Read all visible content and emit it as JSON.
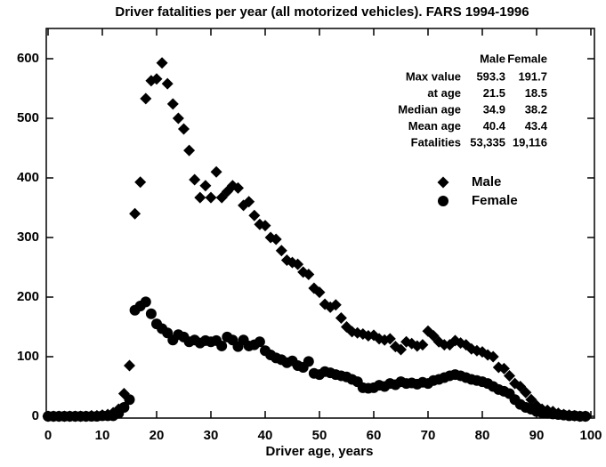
{
  "chart_data": {
    "type": "scatter",
    "title": "Driver fatalities per year (all motorized vehicles). FARS 1994-1996",
    "x_label": "Driver age, years",
    "x": [
      0,
      1,
      2,
      3,
      4,
      5,
      6,
      7,
      8,
      9,
      10,
      11,
      12,
      13,
      14,
      15,
      16,
      17,
      18,
      19,
      20,
      21,
      22,
      23,
      24,
      25,
      26,
      27,
      28,
      29,
      30,
      31,
      32,
      33,
      34,
      35,
      36,
      37,
      38,
      39,
      40,
      41,
      42,
      43,
      44,
      45,
      46,
      47,
      48,
      49,
      50,
      51,
      52,
      53,
      54,
      55,
      56,
      57,
      58,
      59,
      60,
      61,
      62,
      63,
      64,
      65,
      66,
      67,
      68,
      69,
      70,
      71,
      72,
      73,
      74,
      75,
      76,
      77,
      78,
      79,
      80,
      81,
      82,
      83,
      84,
      85,
      86,
      87,
      88,
      89,
      90,
      91,
      92,
      93,
      94,
      95,
      96,
      97,
      98,
      99
    ],
    "series": [
      {
        "name": "Male",
        "color": "#000000",
        "marker": "diamond",
        "values": [
          0,
          0,
          0,
          0,
          0,
          0,
          0,
          0,
          1,
          1,
          2,
          3,
          6,
          12,
          38,
          85,
          340,
          393,
          533,
          563,
          566,
          593,
          558,
          524,
          500,
          482,
          446,
          397,
          367,
          387,
          367,
          410,
          367,
          377,
          387,
          383,
          354,
          360,
          337,
          322,
          320,
          300,
          297,
          278,
          262,
          258,
          255,
          242,
          238,
          215,
          208,
          188,
          183,
          187,
          165,
          150,
          142,
          140,
          138,
          135,
          136,
          130,
          128,
          130,
          117,
          112,
          125,
          122,
          118,
          120,
          143,
          135,
          125,
          120,
          120,
          127,
          123,
          120,
          113,
          110,
          108,
          103,
          100,
          82,
          80,
          68,
          55,
          50,
          40,
          28,
          18,
          12,
          10,
          8,
          5,
          3,
          2,
          1,
          0,
          0
        ]
      },
      {
        "name": "Female",
        "color": "#000000",
        "marker": "circle",
        "values": [
          0,
          0,
          0,
          0,
          0,
          0,
          0,
          0,
          0,
          0,
          1,
          1,
          1,
          5,
          15,
          28,
          178,
          185,
          192,
          172,
          155,
          147,
          140,
          128,
          137,
          133,
          125,
          128,
          123,
          127,
          125,
          127,
          118,
          133,
          128,
          117,
          128,
          118,
          120,
          125,
          110,
          103,
          98,
          95,
          90,
          93,
          85,
          82,
          92,
          72,
          70,
          75,
          73,
          70,
          68,
          66,
          62,
          58,
          48,
          47,
          48,
          52,
          50,
          55,
          53,
          58,
          55,
          56,
          54,
          57,
          55,
          60,
          62,
          65,
          68,
          70,
          68,
          65,
          62,
          60,
          58,
          55,
          50,
          45,
          42,
          38,
          28,
          20,
          15,
          12,
          8,
          6,
          5,
          4,
          3,
          2,
          1,
          1,
          0,
          0
        ]
      }
    ],
    "xlim": [
      0,
      100
    ],
    "xticks": [
      0,
      10,
      20,
      30,
      40,
      50,
      60,
      70,
      80,
      90,
      100
    ],
    "ylim": [
      0,
      650
    ],
    "yticks": [
      0,
      100,
      200,
      300,
      400,
      500,
      600
    ],
    "stats_table": {
      "columns": [
        "Male",
        "Female"
      ],
      "rows": [
        {
          "label": "Max value",
          "values": [
            "593.3",
            "191.7"
          ]
        },
        {
          "label": "at age",
          "values": [
            "21.5",
            "18.5"
          ]
        },
        {
          "label": "Median age",
          "values": [
            "34.9",
            "38.2"
          ]
        },
        {
          "label": "Mean age",
          "values": [
            "40.4",
            "43.4"
          ]
        },
        {
          "label": "Fatalities",
          "values": [
            "53,335",
            "19,116"
          ]
        }
      ]
    }
  }
}
